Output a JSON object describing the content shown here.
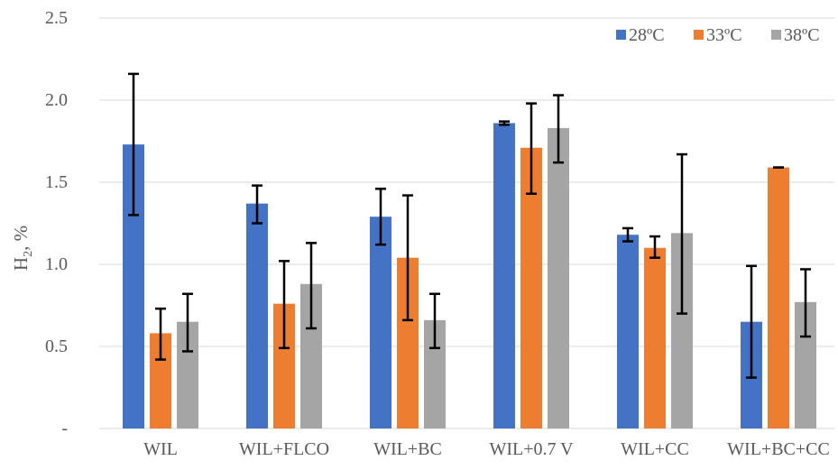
{
  "chart_data": {
    "type": "bar",
    "title": "",
    "xlabel": "",
    "ylabel": "H",
    "ylabel_sub": "2",
    "ylabel_suffix": ", %",
    "ylim": [
      0,
      2.5
    ],
    "yticks": [
      0,
      0.5,
      1.0,
      1.5,
      2.0,
      2.5
    ],
    "ytick_labels": [
      "-",
      "0.5",
      "1.0",
      "1.5",
      "2.0",
      "2.5"
    ],
    "grid": "horizontal",
    "legend_position": "top-right",
    "categories": [
      "WIL",
      "WIL+FLCO",
      "WIL+BC",
      "WIL+0.7 V",
      "WIL+CC",
      "WIL+BC+CC"
    ],
    "series": [
      {
        "name": "28ºC",
        "color": "#4472C4",
        "values": [
          1.73,
          1.37,
          1.29,
          1.86,
          1.18,
          0.65
        ],
        "error_low": [
          1.3,
          1.25,
          1.12,
          1.85,
          1.14,
          0.31
        ],
        "error_high": [
          2.16,
          1.48,
          1.46,
          1.87,
          1.22,
          0.99
        ]
      },
      {
        "name": "33ºC",
        "color": "#ED7D31",
        "values": [
          0.58,
          0.76,
          1.04,
          1.71,
          1.1,
          1.59
        ],
        "error_low": [
          0.42,
          0.49,
          0.66,
          1.43,
          1.04,
          1.59
        ],
        "error_high": [
          0.73,
          1.02,
          1.42,
          1.98,
          1.17,
          1.59
        ]
      },
      {
        "name": "38ºC",
        "color": "#A5A5A5",
        "values": [
          0.65,
          0.88,
          0.66,
          1.83,
          1.19,
          0.77
        ],
        "error_low": [
          0.47,
          0.61,
          0.49,
          1.62,
          0.7,
          0.56
        ],
        "error_high": [
          0.82,
          1.13,
          0.82,
          2.03,
          1.67,
          0.97
        ]
      }
    ]
  }
}
